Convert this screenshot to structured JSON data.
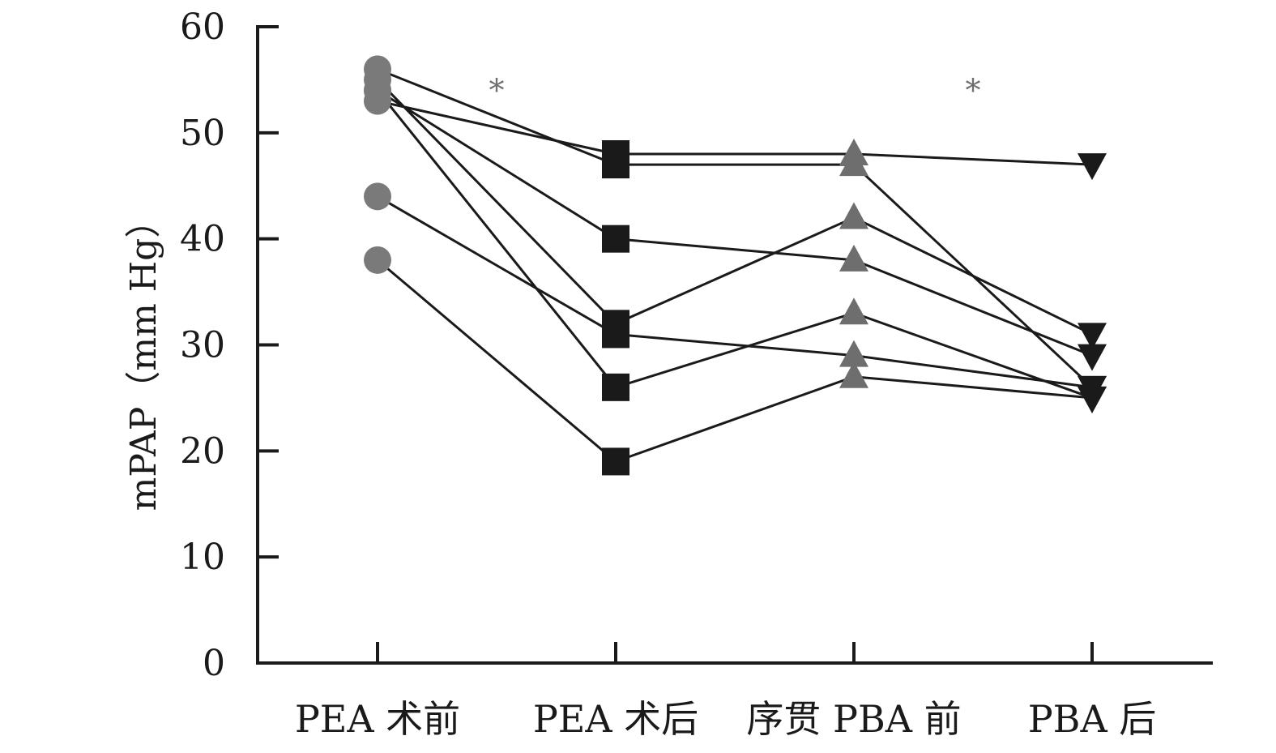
{
  "chart_data": {
    "type": "line",
    "title": "",
    "ylabel": "mPAP（mm Hg）",
    "xlabel": "",
    "ylim": [
      0,
      60
    ],
    "yticks": [
      0,
      10,
      20,
      30,
      40,
      50,
      60
    ],
    "categories": [
      "PEA 术前",
      "PEA 术后",
      "序贯 PBA 前",
      "PBA 后"
    ],
    "markers": [
      {
        "shape": "circle",
        "color": "#7a7a7a"
      },
      {
        "shape": "square",
        "color": "#1a1a1a"
      },
      {
        "shape": "triangle-up",
        "color": "#6e6e6e"
      },
      {
        "shape": "triangle-down",
        "color": "#1a1a1a"
      }
    ],
    "line_color": "#1a1a1a",
    "series": [
      {
        "values": [
          56,
          47,
          47,
          26
        ]
      },
      {
        "values": [
          53,
          48,
          48,
          47
        ]
      },
      {
        "values": [
          55,
          32,
          42,
          31
        ]
      },
      {
        "values": [
          54,
          40,
          38,
          29
        ]
      },
      {
        "values": [
          54,
          26,
          33,
          25
        ]
      },
      {
        "values": [
          44,
          31,
          29,
          26
        ]
      },
      {
        "values": [
          38,
          19,
          27,
          25
        ]
      }
    ],
    "annotations": [
      {
        "text": "*",
        "between": [
          0,
          1
        ],
        "y": 55
      },
      {
        "text": "*",
        "between": [
          2,
          3
        ],
        "y": 55
      }
    ]
  }
}
